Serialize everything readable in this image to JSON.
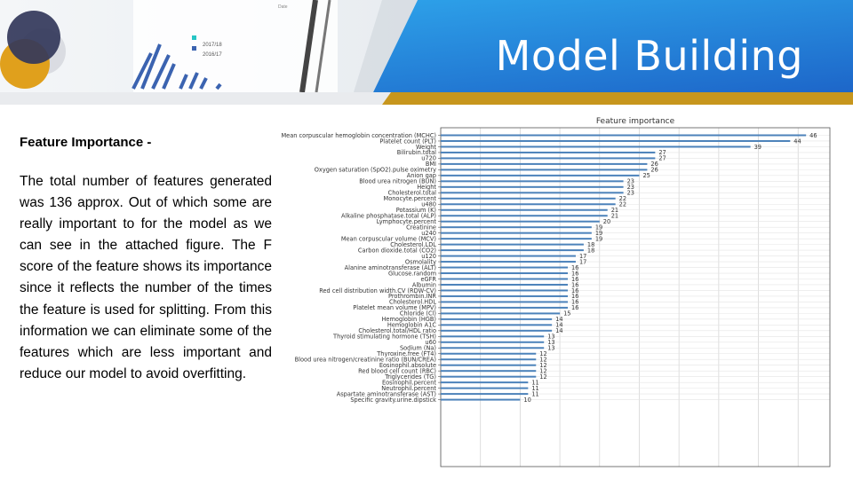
{
  "slide": {
    "title": "Model Building",
    "heading": "Feature Importance -",
    "body": "The total number of features generated was 136 approx. Out of which some are really important to for the model as we can see in the attached figure. The F score of the feature shows its importance since it reflects the number of the times the feature is used for splitting. From this information we can eliminate some of the features which are less important and reduce our model to avoid overfitting."
  },
  "photo_labels": [
    "2017/18",
    "2016/17",
    "Date"
  ],
  "colors": {
    "header_blue": "#1f6fd0",
    "header_light": "#2aa3ee",
    "gold": "#c7961d",
    "bar": "#4c82ba"
  },
  "chart_data": {
    "type": "bar",
    "orientation": "horizontal",
    "title": "Feature importance",
    "grid": true,
    "xlim": [
      0,
      49
    ],
    "categories": [
      "Mean corpuscular hemoglobin concentration (MCHC)",
      "Platelet count (PLT)",
      "Weight",
      "Bilirubin.total",
      "u720",
      "BMI",
      "Oxygen saturation (SpO2).pulse oximetry",
      "Anion gap",
      "Blood urea nitrogen (BUN)",
      "Height",
      "Cholesterol.total",
      "Monocyte.percent",
      "u480",
      "Potassium (K)",
      "Alkaline phosphatase.total (ALP)",
      "Lymphocyte.percent",
      "Creatinine",
      "u240",
      "Mean corpuscular volume (MCV)",
      "Cholesterol.LDL",
      "Carbon dioxide.total (CO2)",
      "u120",
      "Osmolality",
      "Alanine aminotransferase (ALT)",
      "Glucose.random",
      "eGFR",
      "Albumin",
      "Red cell distribution width.CV (RDW-CV)",
      "Prothrombin.INR",
      "Cholesterol.HDL",
      "Platelet mean volume (MPV)",
      "Chloride (Cl)",
      "Hemoglobin (HGB)",
      "Hemoglobin A1C",
      "Cholesterol.total/HDL ratio",
      "Thyroid stimulating hormone (TSH)",
      "u60",
      "Sodium (Na)",
      "Thyroxine.free (FT4)",
      "Blood urea nitrogen/creatinine ratio (BUN/CREA)",
      "Eosinophil.absolute",
      "Red blood cell count (RBC)",
      "Triglycerides (TG)",
      "Eosinophil.percent",
      "Neutrophil.percent",
      "Aspartate aminotransferase (AST)",
      "Specific gravity.urine.dipstick"
    ],
    "values": [
      46,
      44,
      39,
      27,
      27,
      26,
      26,
      25,
      23,
      23,
      23,
      22,
      22,
      21,
      21,
      20,
      19,
      19,
      19,
      18,
      18,
      17,
      17,
      16,
      16,
      16,
      16,
      16,
      16,
      16,
      16,
      15,
      14,
      14,
      14,
      13,
      13,
      13,
      12,
      12,
      12,
      12,
      12,
      11,
      11,
      11,
      10
    ]
  }
}
